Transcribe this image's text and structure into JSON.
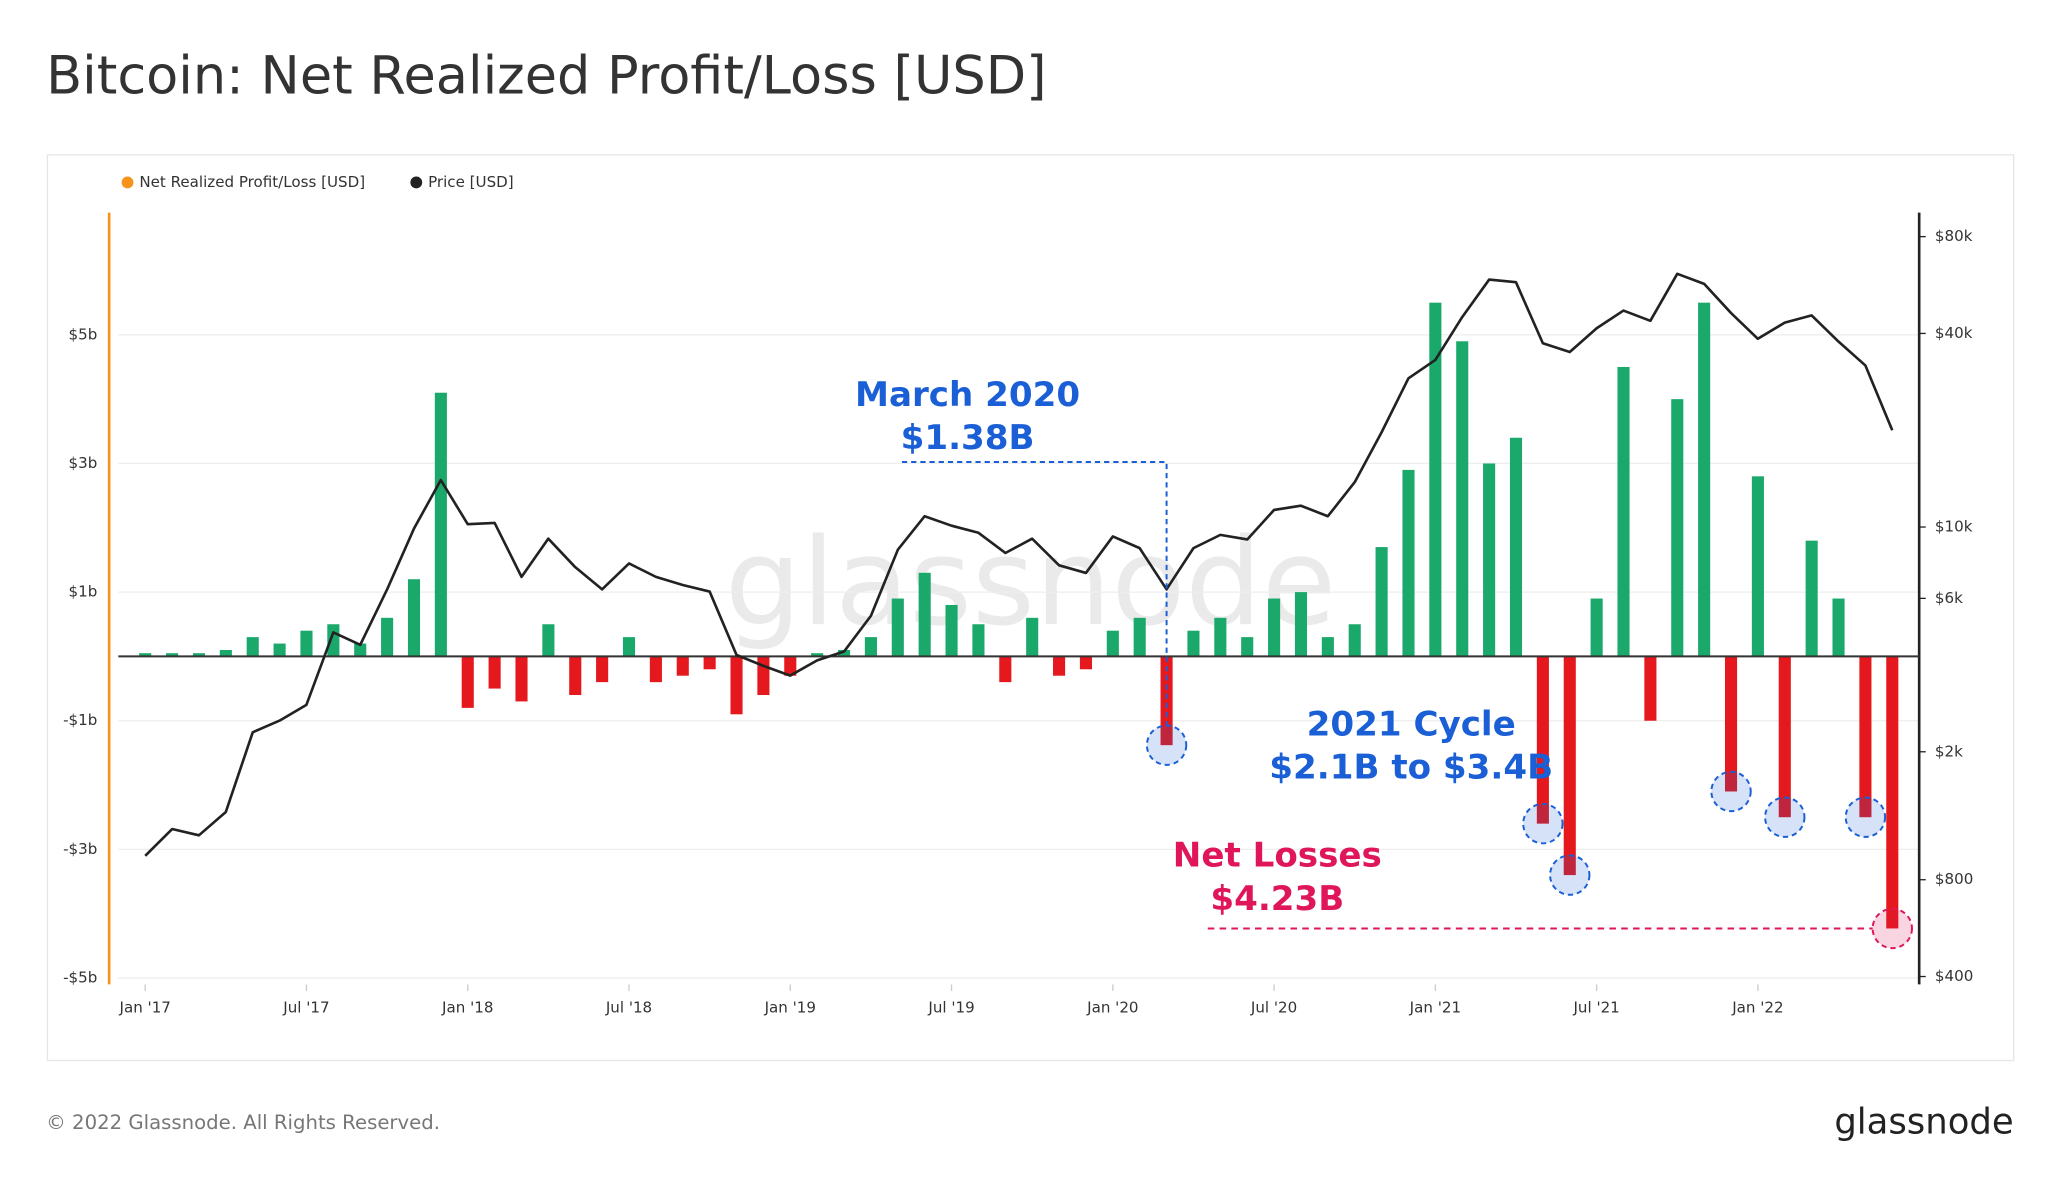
{
  "chart_data": {
    "type": "bar",
    "title": "Bitcoin: Net Realized Profit/Loss [USD]",
    "footer": "© 2022 Glassnode. All Rights Reserved.",
    "brand": "glassnode",
    "watermark": "glassnode",
    "x": [
      "2017-01",
      "2017-02",
      "2017-03",
      "2017-04",
      "2017-05",
      "2017-06",
      "2017-07",
      "2017-08",
      "2017-09",
      "2017-10",
      "2017-11",
      "2017-12",
      "2018-01",
      "2018-02",
      "2018-03",
      "2018-04",
      "2018-05",
      "2018-06",
      "2018-07",
      "2018-08",
      "2018-09",
      "2018-10",
      "2018-11",
      "2018-12",
      "2019-01",
      "2019-02",
      "2019-03",
      "2019-04",
      "2019-05",
      "2019-06",
      "2019-07",
      "2019-08",
      "2019-09",
      "2019-10",
      "2019-11",
      "2019-12",
      "2020-01",
      "2020-02",
      "2020-03",
      "2020-04",
      "2020-05",
      "2020-06",
      "2020-07",
      "2020-08",
      "2020-09",
      "2020-10",
      "2020-11",
      "2020-12",
      "2021-01",
      "2021-02",
      "2021-03",
      "2021-04",
      "2021-05",
      "2021-06",
      "2021-07",
      "2021-08",
      "2021-09",
      "2021-10",
      "2021-11",
      "2021-12",
      "2022-01",
      "2022-02",
      "2022-03",
      "2022-04",
      "2022-05",
      "2022-06"
    ],
    "xlim": [
      "2016-12",
      "2022-07"
    ],
    "xticks": [
      {
        "value": "2017-01",
        "label": "Jan '17"
      },
      {
        "value": "2017-07",
        "label": "Jul '17"
      },
      {
        "value": "2018-01",
        "label": "Jan '18"
      },
      {
        "value": "2018-07",
        "label": "Jul '18"
      },
      {
        "value": "2019-01",
        "label": "Jan '19"
      },
      {
        "value": "2019-07",
        "label": "Jul '19"
      },
      {
        "value": "2020-01",
        "label": "Jan '20"
      },
      {
        "value": "2020-07",
        "label": "Jul '20"
      },
      {
        "value": "2021-01",
        "label": "Jan '21"
      },
      {
        "value": "2021-07",
        "label": "Jul '21"
      },
      {
        "value": "2022-01",
        "label": "Jan '22"
      }
    ],
    "ylim": [
      -5.1,
      6.9
    ],
    "yticks": [
      {
        "value": 5,
        "label": "$5b"
      },
      {
        "value": 3,
        "label": "$3b"
      },
      {
        "value": 1,
        "label": "$1b"
      },
      {
        "value": -1,
        "label": "-$1b"
      },
      {
        "value": -3,
        "label": "-$3b"
      },
      {
        "value": -5,
        "label": "-$5b"
      }
    ],
    "y2lim": [
      378,
      95000
    ],
    "y2scale": "log",
    "y2ticks": [
      {
        "value": 80000,
        "label": "$80k"
      },
      {
        "value": 40000,
        "label": "$40k"
      },
      {
        "value": 10000,
        "label": "$10k"
      },
      {
        "value": 6000,
        "label": "$6k"
      },
      {
        "value": 2000,
        "label": "$2k"
      },
      {
        "value": 800,
        "label": "$800"
      },
      {
        "value": 400,
        "label": "$400"
      }
    ],
    "grid": true,
    "legend": "top-left",
    "series": [
      {
        "name": "Net Realized Profit/Loss [USD]",
        "color": "#f7931a",
        "positive_color": "#1aa86b",
        "negative_color": "#e5191d",
        "values": [
          0.05,
          0.05,
          0.05,
          0.1,
          0.3,
          0.2,
          0.4,
          0.5,
          0.2,
          0.6,
          1.2,
          4.1,
          -0.8,
          -0.5,
          -0.7,
          0.5,
          -0.6,
          -0.4,
          0.3,
          -0.4,
          -0.3,
          -0.2,
          -0.9,
          -0.6,
          -0.3,
          0.05,
          0.1,
          0.3,
          0.9,
          1.3,
          0.8,
          0.5,
          -0.4,
          0.6,
          -0.3,
          -0.2,
          0.4,
          0.6,
          -1.38,
          0.4,
          0.6,
          0.3,
          0.9,
          1.0,
          0.3,
          0.5,
          1.7,
          2.9,
          5.5,
          4.9,
          3.0,
          3.4,
          -2.6,
          -3.4,
          0.9,
          4.5,
          -1.0,
          4.0,
          5.5,
          -2.1,
          2.8,
          -2.5,
          1.8,
          0.9,
          -2.5,
          -4.23
        ]
      },
      {
        "name": "Price [USD]",
        "color": "#222222",
        "axis": "y2",
        "values": [
          950,
          1150,
          1100,
          1300,
          2300,
          2500,
          2800,
          4700,
          4300,
          6400,
          9900,
          14000,
          10200,
          10300,
          7000,
          9200,
          7500,
          6400,
          7700,
          7000,
          6600,
          6300,
          4000,
          3700,
          3450,
          3850,
          4100,
          5300,
          8500,
          10800,
          10100,
          9600,
          8300,
          9200,
          7600,
          7200,
          9350,
          8600,
          6400,
          8600,
          9450,
          9150,
          11300,
          11650,
          10800,
          13800,
          19700,
          29000,
          33100,
          45000,
          58800,
          57700,
          37300,
          35000,
          41500,
          47100,
          43800,
          61300,
          57000,
          46300,
          38500,
          43200,
          45500,
          37700,
          31800,
          20000
        ]
      }
    ],
    "annotations": [
      {
        "lines": [
          "March 2020",
          "$1.38B"
        ],
        "color": "#1a5fd6",
        "points": [
          38
        ]
      },
      {
        "lines": [
          "2021 Cycle",
          "$2.1B to $3.4B"
        ],
        "color": "#1a5fd6",
        "points": [
          52,
          53,
          59,
          61,
          64
        ]
      },
      {
        "lines": [
          "Net Losses",
          "$4.23B"
        ],
        "color": "#e0165a",
        "points": [
          65
        ]
      }
    ]
  }
}
